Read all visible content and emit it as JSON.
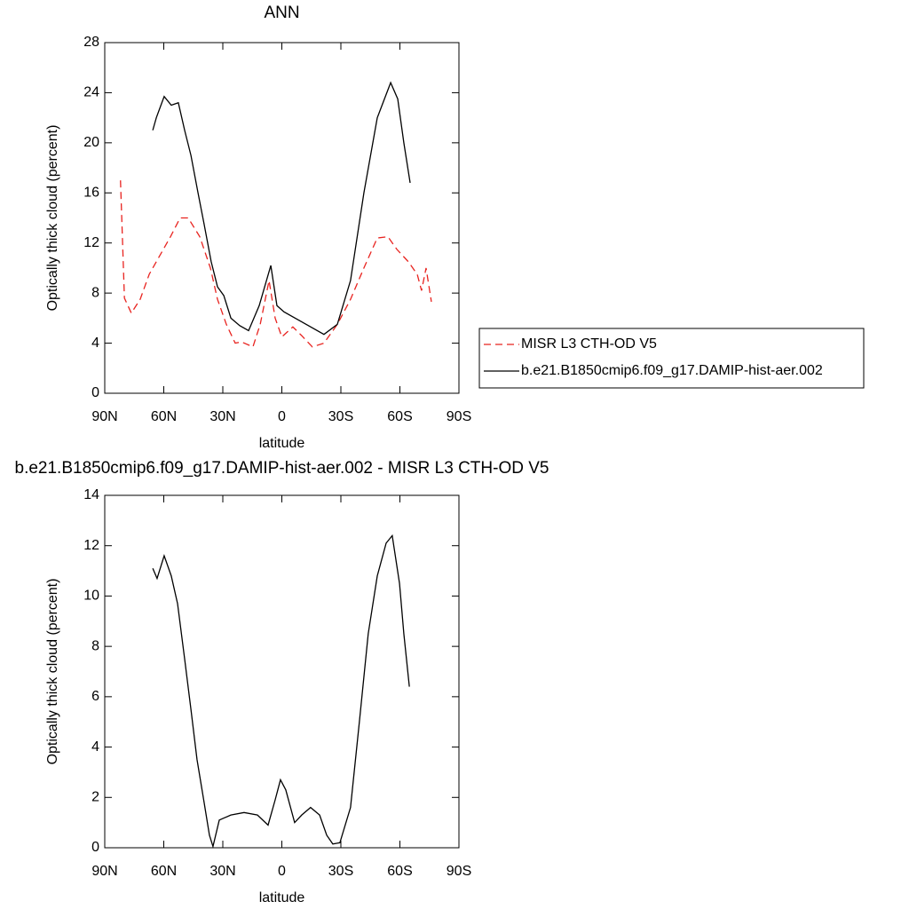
{
  "chart_data": [
    {
      "type": "line",
      "title": "ANN",
      "x_label": "latitude",
      "y_label": "Optically thick cloud (percent)",
      "xlim": [
        90,
        -90
      ],
      "xticks": [
        {
          "value": 90,
          "label": "90N"
        },
        {
          "value": 60,
          "label": "60N"
        },
        {
          "value": 30,
          "label": "30N"
        },
        0,
        {
          "value": -30,
          "label": "30S"
        },
        {
          "value": -60,
          "label": "60S"
        },
        {
          "value": -90,
          "label": "90S"
        }
      ],
      "ylim": [
        0,
        28
      ],
      "yticks": [
        0,
        4,
        8,
        12,
        16,
        20,
        24,
        28
      ],
      "legend": "right",
      "series": [
        {
          "name": "MISR L3 CTH-OD V5",
          "color": "#e8231f",
          "dashed": true,
          "x": [
            82,
            80,
            76.5,
            72,
            67.4,
            62,
            56.6,
            51.7,
            47.6,
            41.7,
            36.3,
            32.7,
            28.2,
            23.7,
            20.5,
            14.7,
            11,
            6.5,
            3.4,
            0,
            -5.6,
            -10.1,
            -15.5,
            -21.4,
            -28.2,
            -34.9,
            -41.7,
            -48.5,
            -53.9,
            -58.4,
            -64.3,
            -68.8,
            -71,
            -73.3,
            -76
          ],
          "values": [
            17,
            7.6,
            6.4,
            7.5,
            9.5,
            11,
            12.5,
            14,
            14,
            12.5,
            10,
            7.5,
            5.5,
            4,
            4.1,
            3.7,
            5.5,
            9,
            6,
            4.5,
            5.3,
            4.6,
            3.7,
            4,
            5.5,
            7.5,
            10,
            12.4,
            12.5,
            11.5,
            10.5,
            9.5,
            8.2,
            10,
            7.3
          ]
        },
        {
          "name": "b.e21.B1850cmip6.f09_g17.DAMIP-hist-aer.002",
          "color": "#000000",
          "dashed": false,
          "x": [
            65.6,
            63.8,
            59.8,
            56.2,
            52.6,
            49.4,
            46.2,
            42.6,
            39.5,
            35.9,
            32.7,
            29.5,
            25.9,
            21.4,
            16.9,
            11.5,
            5.6,
            2.5,
            -1.1,
            -10.1,
            -21.4,
            -28.2,
            -34.9,
            -41.7,
            -48.5,
            -55.3,
            -58.9,
            -62,
            -65.2
          ],
          "values": [
            21,
            22,
            23.7,
            23,
            23.2,
            21,
            19,
            16,
            13.5,
            10.5,
            8.5,
            7.8,
            6,
            5.4,
            5,
            7,
            10.2,
            7,
            6.5,
            5.7,
            4.7,
            5.5,
            9,
            16,
            22,
            24.8,
            23.5,
            20,
            16.8
          ]
        }
      ]
    },
    {
      "type": "line",
      "title": "b.e21.B1850cmip6.f09_g17.DAMIP-hist-aer.002 - MISR L3 CTH-OD V5",
      "x_label": "latitude",
      "y_label": "Optically thick cloud (percent)",
      "xlim": [
        90,
        -90
      ],
      "xticks": [
        {
          "value": 90,
          "label": "90N"
        },
        {
          "value": 60,
          "label": "60N"
        },
        {
          "value": 30,
          "label": "30N"
        },
        0,
        {
          "value": -30,
          "label": "30S"
        },
        {
          "value": -60,
          "label": "60S"
        },
        {
          "value": -90,
          "label": "90S"
        }
      ],
      "ylim": [
        0,
        14
      ],
      "yticks": [
        0,
        2,
        4,
        6,
        8,
        10,
        12,
        14
      ],
      "series": [
        {
          "color": "#000000",
          "dashed": false,
          "x": [
            65.6,
            63.4,
            59.8,
            56.2,
            53,
            49.4,
            46.2,
            43.1,
            39.5,
            36.8,
            35,
            31.8,
            25.9,
            19.2,
            12.4,
            7,
            3.4,
            0.7,
            -2,
            -6.5,
            -10.1,
            -14.6,
            -19.2,
            -22.8,
            -25.9,
            -29.5,
            -34.9,
            -39.4,
            -43.9,
            -48.5,
            -53,
            -56.1,
            -59.8,
            -62,
            -64.8
          ],
          "values": [
            11.1,
            10.7,
            11.6,
            10.8,
            9.7,
            7.5,
            5.5,
            3.5,
            1.8,
            0.5,
            0.05,
            1.1,
            1.3,
            1.4,
            1.3,
            0.9,
            1.9,
            2.7,
            2.3,
            1,
            1.3,
            1.6,
            1.3,
            0.5,
            0.15,
            0.2,
            1.6,
            5,
            8.5,
            10.8,
            12.1,
            12.4,
            10.5,
            8.5,
            6.4
          ]
        }
      ]
    }
  ]
}
